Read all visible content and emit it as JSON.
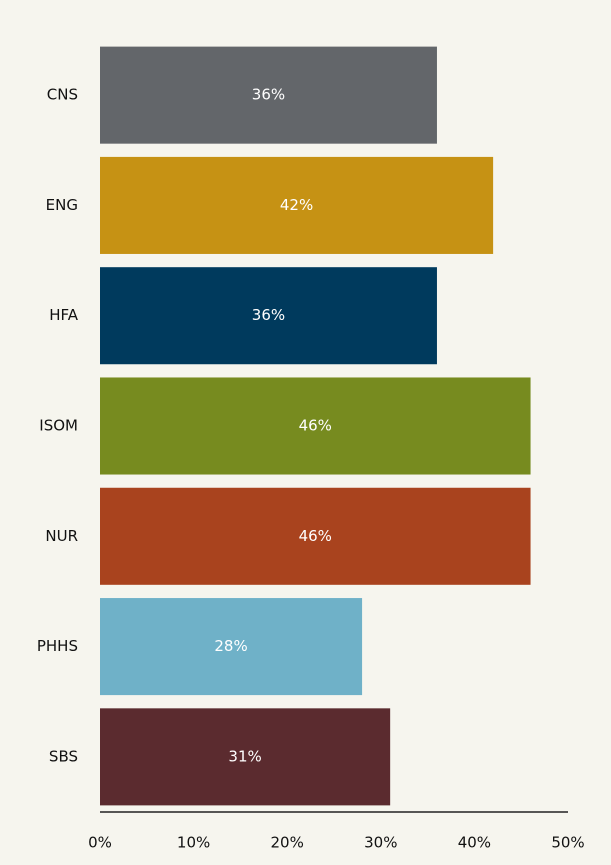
{
  "chart_data": {
    "type": "bar",
    "orientation": "horizontal",
    "categories": [
      "CNS",
      "ENG",
      "HFA",
      "ISOM",
      "NUR",
      "PHHS",
      "SBS"
    ],
    "values": [
      36,
      42,
      36,
      46,
      46,
      28,
      31
    ],
    "value_labels": [
      "36%",
      "42%",
      "36%",
      "46%",
      "46%",
      "28%",
      "31%"
    ],
    "colors": [
      "#63666a",
      "#c69214",
      "#003a5d",
      "#778b1f",
      "#a9431e",
      "#6fb1c8",
      "#5b2b2f"
    ],
    "xlim": [
      0,
      50
    ],
    "xticks": [
      {
        "value": 0,
        "label": "0%"
      },
      {
        "value": 10,
        "label": "10%"
      },
      {
        "value": 20,
        "label": "20%"
      },
      {
        "value": 30,
        "label": "30%"
      },
      {
        "value": 40,
        "label": "40%"
      },
      {
        "value": 50,
        "label": "50%"
      }
    ],
    "grid": false
  }
}
